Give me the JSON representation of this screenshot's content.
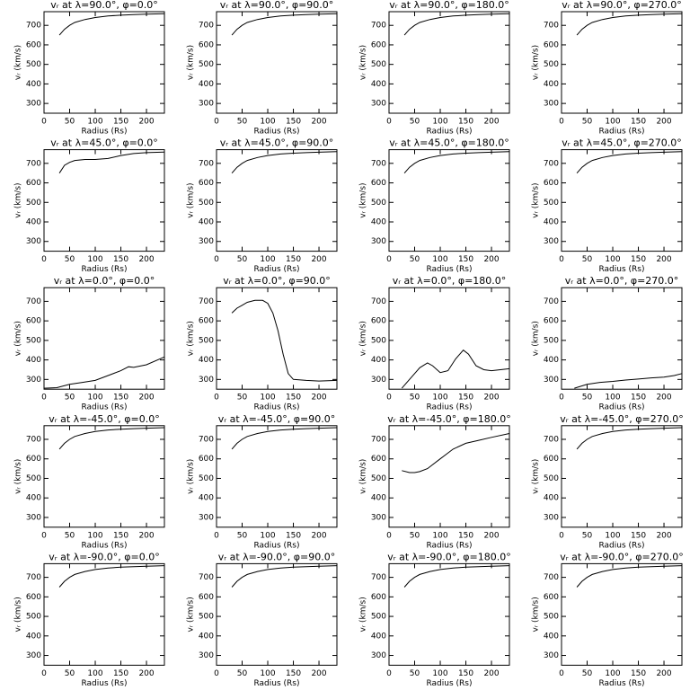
{
  "chart_data": [
    {
      "type": "line",
      "title": "vᵣ at λ=90.0°, φ=0.0°",
      "xlabel": "Radius (Rs)",
      "ylabel": "vᵣ (km/s)",
      "x": [
        30,
        40,
        50,
        60,
        80,
        100,
        125,
        150,
        175,
        200,
        235
      ],
      "values": [
        650,
        680,
        700,
        715,
        730,
        740,
        748,
        752,
        755,
        757,
        760
      ],
      "xlim": [
        0,
        235
      ],
      "ylim": [
        250,
        770
      ],
      "xticks": [
        0,
        50,
        100,
        150,
        200
      ],
      "yticks": [
        300,
        400,
        500,
        600,
        700
      ]
    },
    {
      "type": "line",
      "title": "vᵣ at λ=90.0°, φ=90.0°",
      "xlabel": "Radius (Rs)",
      "ylabel": "vᵣ (km/s)",
      "x": [
        30,
        40,
        50,
        60,
        80,
        100,
        125,
        150,
        175,
        200,
        235
      ],
      "values": [
        650,
        680,
        700,
        715,
        730,
        740,
        748,
        752,
        755,
        757,
        760
      ],
      "xlim": [
        0,
        235
      ],
      "ylim": [
        250,
        770
      ],
      "xticks": [
        0,
        50,
        100,
        150,
        200
      ],
      "yticks": [
        300,
        400,
        500,
        600,
        700
      ]
    },
    {
      "type": "line",
      "title": "vᵣ at λ=90.0°, φ=180.0°",
      "xlabel": "Radius (Rs)",
      "ylabel": "vᵣ (km/s)",
      "x": [
        30,
        40,
        50,
        60,
        80,
        100,
        125,
        150,
        175,
        200,
        235
      ],
      "values": [
        650,
        680,
        700,
        715,
        730,
        740,
        748,
        752,
        755,
        757,
        760
      ],
      "xlim": [
        0,
        235
      ],
      "ylim": [
        250,
        770
      ],
      "xticks": [
        0,
        50,
        100,
        150,
        200
      ],
      "yticks": [
        300,
        400,
        500,
        600,
        700
      ]
    },
    {
      "type": "line",
      "title": "vᵣ at λ=90.0°, φ=270.0°",
      "xlabel": "Radius (Rs)",
      "ylabel": "vᵣ (km/s)",
      "x": [
        30,
        40,
        50,
        60,
        80,
        100,
        125,
        150,
        175,
        200,
        235
      ],
      "values": [
        650,
        680,
        700,
        715,
        730,
        740,
        748,
        752,
        755,
        757,
        760
      ],
      "xlim": [
        0,
        235
      ],
      "ylim": [
        250,
        770
      ],
      "xticks": [
        0,
        50,
        100,
        150,
        200
      ],
      "yticks": [
        300,
        400,
        500,
        600,
        700
      ]
    },
    {
      "type": "line",
      "title": "vᵣ at λ=45.0°, φ=0.0°",
      "xlabel": "Radius (Rs)",
      "ylabel": "vᵣ (km/s)",
      "x": [
        30,
        40,
        50,
        60,
        80,
        100,
        125,
        150,
        175,
        200,
        235
      ],
      "values": [
        650,
        690,
        705,
        715,
        720,
        720,
        725,
        740,
        750,
        755,
        758
      ],
      "xlim": [
        0,
        235
      ],
      "ylim": [
        250,
        770
      ],
      "xticks": [
        0,
        50,
        100,
        150,
        200
      ],
      "yticks": [
        300,
        400,
        500,
        600,
        700
      ]
    },
    {
      "type": "line",
      "title": "vᵣ at λ=45.0°, φ=90.0°",
      "xlabel": "Radius (Rs)",
      "ylabel": "vᵣ (km/s)",
      "x": [
        30,
        40,
        50,
        60,
        80,
        100,
        125,
        150,
        175,
        200,
        235
      ],
      "values": [
        650,
        680,
        700,
        715,
        730,
        740,
        748,
        752,
        755,
        757,
        760
      ],
      "xlim": [
        0,
        235
      ],
      "ylim": [
        250,
        770
      ],
      "xticks": [
        0,
        50,
        100,
        150,
        200
      ],
      "yticks": [
        300,
        400,
        500,
        600,
        700
      ]
    },
    {
      "type": "line",
      "title": "vᵣ at λ=45.0°, φ=180.0°",
      "xlabel": "Radius (Rs)",
      "ylabel": "vᵣ (km/s)",
      "x": [
        30,
        40,
        50,
        60,
        80,
        100,
        125,
        150,
        175,
        200,
        235
      ],
      "values": [
        650,
        680,
        700,
        715,
        730,
        740,
        748,
        752,
        755,
        757,
        760
      ],
      "xlim": [
        0,
        235
      ],
      "ylim": [
        250,
        770
      ],
      "xticks": [
        0,
        50,
        100,
        150,
        200
      ],
      "yticks": [
        300,
        400,
        500,
        600,
        700
      ]
    },
    {
      "type": "line",
      "title": "vᵣ at λ=45.0°, φ=270.0°",
      "xlabel": "Radius (Rs)",
      "ylabel": "vᵣ (km/s)",
      "x": [
        30,
        40,
        50,
        60,
        80,
        100,
        125,
        150,
        175,
        200,
        235
      ],
      "values": [
        650,
        680,
        700,
        715,
        730,
        740,
        748,
        752,
        755,
        757,
        760
      ],
      "xlim": [
        0,
        235
      ],
      "ylim": [
        250,
        770
      ],
      "xticks": [
        0,
        50,
        100,
        150,
        200
      ],
      "yticks": [
        300,
        400,
        500,
        600,
        700
      ]
    },
    {
      "type": "line",
      "title": "vᵣ at λ=0.0°, φ=0.0°",
      "xlabel": "Radius (Rs)",
      "ylabel": "vᵣ (km/s)",
      "x": [
        0,
        25,
        50,
        75,
        100,
        125,
        150,
        165,
        175,
        200,
        235
      ],
      "values": [
        255,
        258,
        275,
        285,
        295,
        320,
        345,
        365,
        362,
        375,
        415
      ],
      "xlim": [
        0,
        235
      ],
      "ylim": [
        250,
        770
      ],
      "xticks": [
        0,
        50,
        100,
        150,
        200
      ],
      "yticks": [
        300,
        400,
        500,
        600,
        700
      ]
    },
    {
      "type": "line",
      "title": "vᵣ at λ=0.0°, φ=90.0°",
      "xlabel": "Radius (Rs)",
      "ylabel": "vᵣ (km/s)",
      "x": [
        30,
        40,
        50,
        60,
        75,
        90,
        100,
        110,
        120,
        130,
        140,
        150,
        175,
        200,
        235
      ],
      "values": [
        640,
        665,
        680,
        695,
        705,
        705,
        690,
        640,
        550,
        430,
        330,
        300,
        295,
        292,
        295
      ],
      "xlim": [
        0,
        235
      ],
      "ylim": [
        250,
        770
      ],
      "xticks": [
        0,
        50,
        100,
        150,
        200
      ],
      "yticks": [
        300,
        400,
        500,
        600,
        700
      ]
    },
    {
      "type": "line",
      "title": "vᵣ at λ=0.0°, φ=180.0°",
      "xlabel": "Radius (Rs)",
      "ylabel": "vᵣ (km/s)",
      "x": [
        25,
        40,
        50,
        60,
        75,
        85,
        100,
        115,
        130,
        145,
        155,
        170,
        185,
        200,
        235
      ],
      "values": [
        255,
        300,
        330,
        360,
        385,
        370,
        335,
        345,
        405,
        450,
        430,
        370,
        350,
        345,
        355
      ],
      "xlim": [
        0,
        235
      ],
      "ylim": [
        250,
        770
      ],
      "xticks": [
        0,
        50,
        100,
        150,
        200
      ],
      "yticks": [
        300,
        400,
        500,
        600,
        700
      ]
    },
    {
      "type": "line",
      "title": "vᵣ at λ=0.0°, φ=270.0°",
      "xlabel": "Radius (Rs)",
      "ylabel": "vᵣ (km/s)",
      "x": [
        25,
        50,
        75,
        100,
        125,
        150,
        175,
        200,
        220,
        235
      ],
      "values": [
        255,
        275,
        285,
        290,
        297,
        302,
        308,
        312,
        320,
        330
      ],
      "xlim": [
        0,
        235
      ],
      "ylim": [
        250,
        770
      ],
      "xticks": [
        0,
        50,
        100,
        150,
        200
      ],
      "yticks": [
        300,
        400,
        500,
        600,
        700
      ]
    },
    {
      "type": "line",
      "title": "vᵣ at λ=-45.0°, φ=0.0°",
      "xlabel": "Radius (Rs)",
      "ylabel": "vᵣ (km/s)",
      "x": [
        30,
        40,
        50,
        60,
        80,
        100,
        125,
        150,
        175,
        200,
        235
      ],
      "values": [
        650,
        680,
        700,
        715,
        730,
        740,
        748,
        752,
        755,
        757,
        760
      ],
      "xlim": [
        0,
        235
      ],
      "ylim": [
        250,
        770
      ],
      "xticks": [
        0,
        50,
        100,
        150,
        200
      ],
      "yticks": [
        300,
        400,
        500,
        600,
        700
      ]
    },
    {
      "type": "line",
      "title": "vᵣ at λ=-45.0°, φ=90.0°",
      "xlabel": "Radius (Rs)",
      "ylabel": "vᵣ (km/s)",
      "x": [
        30,
        40,
        50,
        60,
        80,
        100,
        125,
        150,
        175,
        200,
        235
      ],
      "values": [
        650,
        680,
        700,
        715,
        730,
        740,
        748,
        752,
        755,
        757,
        760
      ],
      "xlim": [
        0,
        235
      ],
      "ylim": [
        250,
        770
      ],
      "xticks": [
        0,
        50,
        100,
        150,
        200
      ],
      "yticks": [
        300,
        400,
        500,
        600,
        700
      ]
    },
    {
      "type": "line",
      "title": "vᵣ at λ=-45.0°, φ=180.0°",
      "xlabel": "Radius (Rs)",
      "ylabel": "vᵣ (km/s)",
      "x": [
        25,
        40,
        50,
        60,
        75,
        100,
        125,
        150,
        175,
        200,
        235
      ],
      "values": [
        540,
        530,
        530,
        535,
        550,
        600,
        650,
        680,
        695,
        710,
        730
      ],
      "xlim": [
        0,
        235
      ],
      "ylim": [
        250,
        770
      ],
      "xticks": [
        0,
        50,
        100,
        150,
        200
      ],
      "yticks": [
        300,
        400,
        500,
        600,
        700
      ]
    },
    {
      "type": "line",
      "title": "vᵣ at λ=-45.0°, φ=270.0°",
      "xlabel": "Radius (Rs)",
      "ylabel": "vᵣ (km/s)",
      "x": [
        30,
        40,
        50,
        60,
        80,
        100,
        125,
        150,
        175,
        200,
        235
      ],
      "values": [
        650,
        680,
        700,
        715,
        730,
        740,
        748,
        752,
        755,
        757,
        760
      ],
      "xlim": [
        0,
        235
      ],
      "ylim": [
        250,
        770
      ],
      "xticks": [
        0,
        50,
        100,
        150,
        200
      ],
      "yticks": [
        300,
        400,
        500,
        600,
        700
      ]
    },
    {
      "type": "line",
      "title": "vᵣ at λ=-90.0°, φ=0.0°",
      "xlabel": "Radius (Rs)",
      "ylabel": "vᵣ (km/s)",
      "x": [
        30,
        40,
        50,
        60,
        80,
        100,
        125,
        150,
        175,
        200,
        235
      ],
      "values": [
        650,
        680,
        700,
        715,
        730,
        740,
        748,
        752,
        755,
        757,
        760
      ],
      "xlim": [
        0,
        235
      ],
      "ylim": [
        250,
        770
      ],
      "xticks": [
        0,
        50,
        100,
        150,
        200
      ],
      "yticks": [
        300,
        400,
        500,
        600,
        700
      ]
    },
    {
      "type": "line",
      "title": "vᵣ at λ=-90.0°, φ=90.0°",
      "xlabel": "Radius (Rs)",
      "ylabel": "vᵣ (km/s)",
      "x": [
        30,
        40,
        50,
        60,
        80,
        100,
        125,
        150,
        175,
        200,
        235
      ],
      "values": [
        650,
        680,
        700,
        715,
        730,
        740,
        748,
        752,
        755,
        757,
        760
      ],
      "xlim": [
        0,
        235
      ],
      "ylim": [
        250,
        770
      ],
      "xticks": [
        0,
        50,
        100,
        150,
        200
      ],
      "yticks": [
        300,
        400,
        500,
        600,
        700
      ]
    },
    {
      "type": "line",
      "title": "vᵣ at λ=-90.0°, φ=180.0°",
      "xlabel": "Radius (Rs)",
      "ylabel": "vᵣ (km/s)",
      "x": [
        30,
        40,
        50,
        60,
        80,
        100,
        125,
        150,
        175,
        200,
        235
      ],
      "values": [
        650,
        680,
        700,
        715,
        730,
        740,
        748,
        752,
        755,
        757,
        760
      ],
      "xlim": [
        0,
        235
      ],
      "ylim": [
        250,
        770
      ],
      "xticks": [
        0,
        50,
        100,
        150,
        200
      ],
      "yticks": [
        300,
        400,
        500,
        600,
        700
      ]
    },
    {
      "type": "line",
      "title": "vᵣ at λ=-90.0°, φ=270.0°",
      "xlabel": "Radius (Rs)",
      "ylabel": "vᵣ (km/s)",
      "x": [
        30,
        40,
        50,
        60,
        80,
        100,
        125,
        150,
        175,
        200,
        235
      ],
      "values": [
        650,
        680,
        700,
        715,
        730,
        740,
        748,
        752,
        755,
        757,
        760
      ],
      "xlim": [
        0,
        235
      ],
      "ylim": [
        250,
        770
      ],
      "xticks": [
        0,
        50,
        100,
        150,
        200
      ],
      "yticks": [
        300,
        400,
        500,
        600,
        700
      ]
    }
  ]
}
